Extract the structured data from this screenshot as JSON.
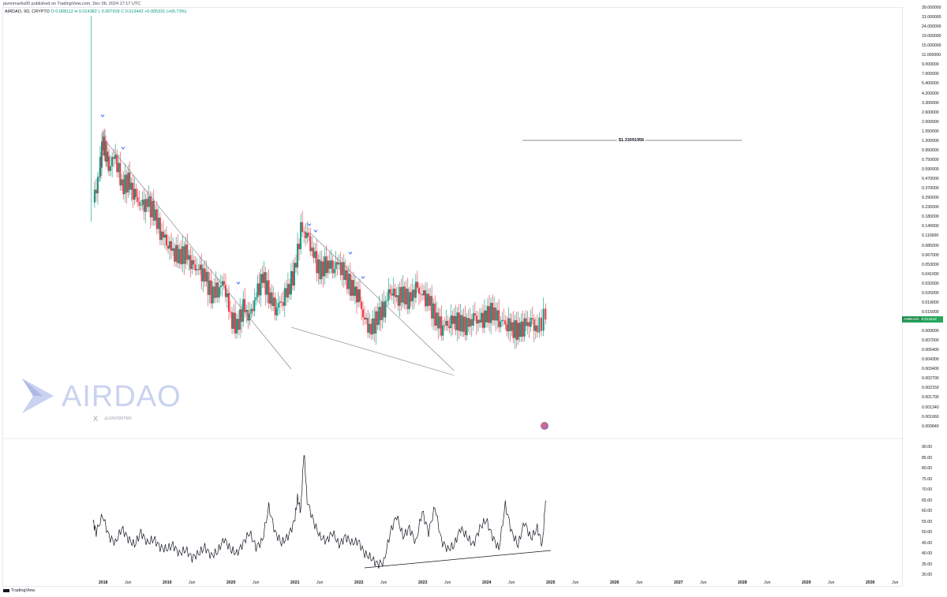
{
  "publisher_line": "javonmarks00 published on TradingView.com, Dec 06, 2024 17:17 UTC",
  "legend": {
    "symbol": "AIRDAO, 9D, CRYPTO",
    "open": "O 0.008112",
    "high": "H 0.014382",
    "low": "L 0.007918",
    "close": "C 0.013442",
    "change": "+0.005331 (+65.73%)"
  },
  "price_tag": {
    "symbol": "AMBUSD",
    "value": "0.013442"
  },
  "level_label": "$1.33091956",
  "watermark": {
    "brand": "AIRDAO",
    "x_mark": "X",
    "handle": "@JAVONTM1"
  },
  "footer": {
    "brand": "TradingView"
  },
  "colors": {
    "up": "#089981",
    "down": "#f23645",
    "line": "#131722",
    "marker": "#2962ff"
  },
  "icons": [
    "airdao-logo-icon",
    "x-logo-icon",
    "us-flag-icon",
    "tradingview-logo-icon",
    "chevron-down-marker-icon"
  ],
  "chart_data": [
    {
      "type": "candlestick",
      "scale": "log",
      "y_ticks": [
        "39.000000",
        "31.000000",
        "24.000000",
        "19.000000",
        "15.000000",
        "11.000000",
        "9.000000",
        "7.000000",
        "5.400000",
        "4.200000",
        "3.300000",
        "2.600000",
        "2.000000",
        "1.550000",
        "1.200000",
        "0.950000",
        "0.750000",
        "0.590000",
        "0.470000",
        "0.370000",
        "0.290000",
        "0.230000",
        "0.180000",
        "0.140000",
        "0.110000",
        "0.085000",
        "0.067000",
        "0.053000",
        "0.041000",
        "0.032000",
        "0.025000",
        "0.019000",
        "0.015000",
        "0.012000",
        "0.009000",
        "0.007000",
        "0.005400",
        "0.004300",
        "0.003400",
        "0.002700",
        "0.002150",
        "0.001700",
        "0.001340",
        "0.001060",
        "0.000840"
      ],
      "x_ticks": [
        "2018",
        "Jun",
        "2019",
        "Jun",
        "2020",
        "Jun",
        "2021",
        "Jun",
        "2022",
        "Jun",
        "2023",
        "Jun",
        "2024",
        "Jun",
        "2025",
        "Jun",
        "2026",
        "Jun",
        "2027",
        "Jun",
        "2028",
        "Jun",
        "2029",
        "Jun",
        "2030",
        "Jun"
      ],
      "series": [
        {
          "t": [
            2017.85,
            2017.95,
            2018.0,
            2018.05,
            2018.1,
            2018.2,
            2018.3,
            2018.4,
            2018.5,
            2018.6,
            2018.7,
            2018.8,
            2018.9,
            2019.0,
            2019.1,
            2019.2,
            2019.3,
            2019.4,
            2019.5,
            2019.6,
            2019.7,
            2019.8,
            2019.9,
            2020.0,
            2020.1,
            2020.2,
            2020.3,
            2020.4,
            2020.5,
            2020.6,
            2020.7,
            2020.8,
            2020.9,
            2021.0,
            2021.1,
            2021.2,
            2021.3,
            2021.4,
            2021.5,
            2021.6,
            2021.7,
            2021.8,
            2021.9,
            2022.0,
            2022.1,
            2022.2,
            2022.3,
            2022.4,
            2022.5,
            2022.6,
            2022.7,
            2022.8,
            2022.9,
            2023.0,
            2023.1,
            2023.2,
            2023.3,
            2023.4,
            2023.5,
            2023.6,
            2023.7,
            2023.8,
            2023.9,
            2024.0,
            2024.1,
            2024.2,
            2024.3,
            2024.4,
            2024.5,
            2024.6,
            2024.7,
            2024.8,
            2024.93
          ],
          "close": [
            0.25,
            0.55,
            1.3,
            1.0,
            0.7,
            0.9,
            0.4,
            0.45,
            0.3,
            0.22,
            0.25,
            0.2,
            0.12,
            0.09,
            0.07,
            0.06,
            0.065,
            0.045,
            0.04,
            0.035,
            0.022,
            0.025,
            0.03,
            0.012,
            0.009,
            0.015,
            0.011,
            0.02,
            0.035,
            0.022,
            0.015,
            0.018,
            0.025,
            0.04,
            0.12,
            0.1,
            0.06,
            0.04,
            0.05,
            0.045,
            0.05,
            0.035,
            0.025,
            0.02,
            0.01,
            0.008,
            0.012,
            0.015,
            0.025,
            0.02,
            0.022,
            0.018,
            0.025,
            0.02,
            0.018,
            0.012,
            0.009,
            0.01,
            0.011,
            0.01,
            0.009,
            0.011,
            0.01,
            0.012,
            0.014,
            0.011,
            0.01,
            0.009,
            0.008,
            0.009,
            0.01,
            0.008,
            0.013442
          ]
        }
      ],
      "trendlines": 3,
      "level": 1.33091956
    },
    {
      "type": "line",
      "y_ticks": [
        "90.00",
        "85.00",
        "80.00",
        "75.00",
        "70.00",
        "65.00",
        "60.00",
        "55.00",
        "50.00",
        "45.00",
        "40.00",
        "35.00",
        "30.00"
      ],
      "ylim": [
        28,
        92
      ],
      "series": [
        {
          "t": [
            2017.85,
            2017.9,
            2018.0,
            2018.1,
            2018.2,
            2018.3,
            2018.4,
            2018.5,
            2018.6,
            2018.7,
            2018.8,
            2018.9,
            2019.0,
            2019.1,
            2019.2,
            2019.3,
            2019.4,
            2019.5,
            2019.6,
            2019.7,
            2019.8,
            2019.9,
            2020.0,
            2020.1,
            2020.2,
            2020.3,
            2020.4,
            2020.5,
            2020.6,
            2020.7,
            2020.8,
            2020.9,
            2021.0,
            2021.05,
            2021.1,
            2021.15,
            2021.2,
            2021.3,
            2021.4,
            2021.5,
            2021.6,
            2021.7,
            2021.8,
            2021.9,
            2022.0,
            2022.1,
            2022.2,
            2022.3,
            2022.4,
            2022.5,
            2022.6,
            2022.7,
            2022.8,
            2022.9,
            2023.0,
            2023.1,
            2023.2,
            2023.3,
            2023.4,
            2023.5,
            2023.6,
            2023.7,
            2023.8,
            2023.9,
            2024.0,
            2024.1,
            2024.2,
            2024.3,
            2024.4,
            2024.5,
            2024.6,
            2024.7,
            2024.8,
            2024.88,
            2024.93
          ],
          "values": [
            55,
            50,
            58,
            48,
            45,
            52,
            47,
            44,
            50,
            45,
            47,
            43,
            42,
            44,
            40,
            42,
            38,
            40,
            43,
            39,
            41,
            47,
            42,
            40,
            45,
            50,
            43,
            46,
            62,
            50,
            45,
            48,
            55,
            66,
            60,
            88,
            65,
            55,
            48,
            46,
            50,
            44,
            48,
            45,
            46,
            40,
            38,
            35,
            36,
            50,
            58,
            48,
            52,
            45,
            60,
            50,
            62,
            46,
            42,
            44,
            52,
            48,
            44,
            52,
            56,
            48,
            42,
            63,
            50,
            44,
            55,
            47,
            52,
            44,
            65
          ]
        }
      ],
      "trendlines": 1
    }
  ]
}
